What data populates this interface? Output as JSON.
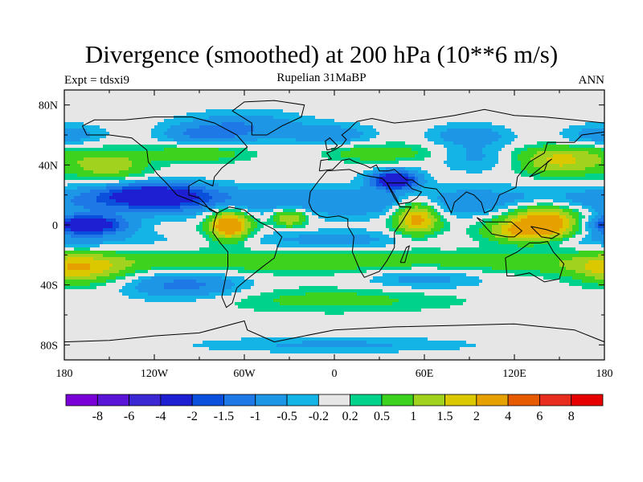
{
  "chart_data": {
    "type": "heatmap",
    "title": "Divergence (smoothed) at 200 hPa (10**6 m/s)",
    "left_label": "Expt = tdsxi9",
    "center_label": "Rupelian  31MaBP",
    "right_label": "ANN",
    "x_axis": {
      "range": [
        -180,
        180
      ],
      "ticks": [
        -180,
        -120,
        -60,
        0,
        60,
        120,
        180
      ],
      "tick_labels": [
        "180",
        "120W",
        "60W",
        "0",
        "60E",
        "120E",
        "180"
      ]
    },
    "y_axis": {
      "range": [
        -90,
        90
      ],
      "ticks": [
        80,
        40,
        0,
        -40,
        -80
      ],
      "tick_labels": [
        "80N",
        "40N",
        "0",
        "40S",
        "80S"
      ]
    },
    "colorbar": {
      "colors": [
        "#7a00d8",
        "#5a14d6",
        "#3c28d2",
        "#1e1ed2",
        "#0a50dc",
        "#1e78e6",
        "#1e96e6",
        "#14b4e6",
        "#e6e6e6",
        "#00d28c",
        "#3cd21e",
        "#a0d21e",
        "#dcc800",
        "#e6a000",
        "#e65a00",
        "#e62d1e",
        "#e60000"
      ],
      "labels": [
        "-8",
        "-6",
        "-4",
        "-2",
        "-1.5",
        "-1",
        "-0.5",
        "-0.2",
        "0.2",
        "0.5",
        "1",
        "1.5",
        "2",
        "4",
        "6",
        "8"
      ]
    },
    "features": [
      {
        "lon": -120,
        "lat": 20,
        "value": -2.5,
        "rlon": 35,
        "rlat": 8
      },
      {
        "lon": -165,
        "lat": 0,
        "value": -3,
        "rlon": 25,
        "rlat": 6
      },
      {
        "lon": -70,
        "lat": 0,
        "value": 3,
        "rlon": 14,
        "rlat": 10
      },
      {
        "lon": -30,
        "lat": 5,
        "value": 1.8,
        "rlon": 12,
        "rlat": 6
      },
      {
        "lon": 55,
        "lat": 5,
        "value": 2.5,
        "rlon": 15,
        "rlat": 12
      },
      {
        "lon": 140,
        "lat": 5,
        "value": 2.5,
        "rlon": 25,
        "rlat": 10
      },
      {
        "lon": 130,
        "lat": -5,
        "value": 2,
        "rlon": 30,
        "rlat": 8
      },
      {
        "lon": 40,
        "lat": 30,
        "value": -3,
        "rlon": 15,
        "rlat": 6
      },
      {
        "lon": -150,
        "lat": 40,
        "value": 1.4,
        "rlon": 25,
        "rlat": 10
      },
      {
        "lon": -170,
        "lat": -30,
        "value": 1.5,
        "rlon": 30,
        "rlat": 10
      },
      {
        "lon": -100,
        "lat": -40,
        "value": -1.2,
        "rlon": 40,
        "rlat": 10
      },
      {
        "lon": 150,
        "lat": 40,
        "value": 1.4,
        "rlon": 30,
        "rlat": 8
      },
      {
        "lon": 0,
        "lat": -50,
        "value": 0.7,
        "rlon": 80,
        "rlat": 8
      },
      {
        "lon": -60,
        "lat": 65,
        "value": -1,
        "rlon": 40,
        "rlat": 10
      },
      {
        "lon": 60,
        "lat": -35,
        "value": -0.8,
        "rlon": 40,
        "rlat": 8
      },
      {
        "lon": 100,
        "lat": 45,
        "value": -0.6,
        "rlon": 30,
        "rlat": 10
      },
      {
        "lon": 0,
        "lat": -80,
        "value": -0.6,
        "rlon": 90,
        "rlat": 5
      }
    ]
  }
}
